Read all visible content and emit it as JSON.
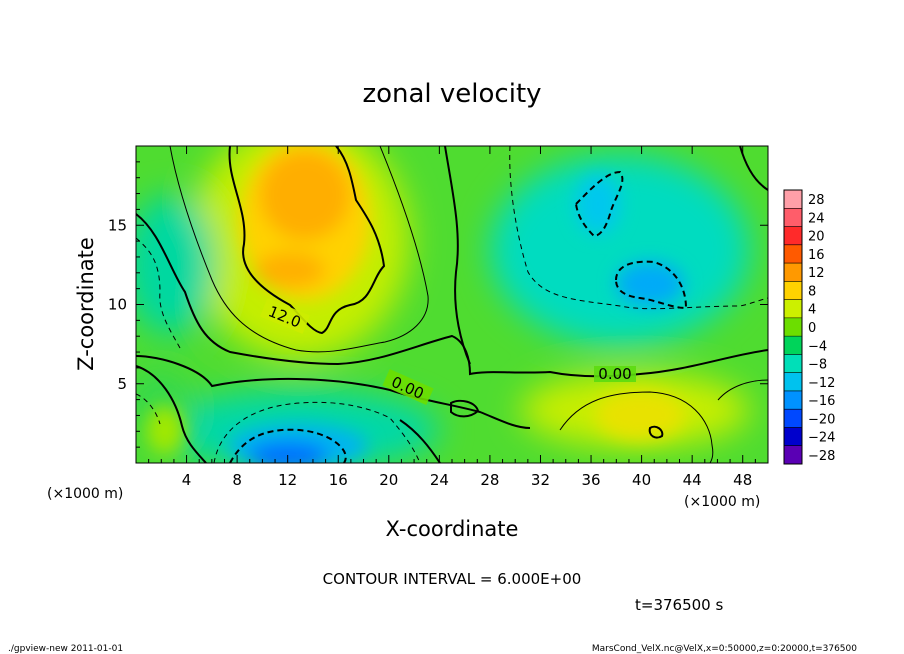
{
  "chart_data": {
    "type": "heatmap",
    "title": "zonal velocity",
    "xlabel": "X-coordinate",
    "ylabel": "Z-coordinate",
    "x_unit": "(×1000 m)",
    "y_unit": "(×1000 m)",
    "xlim": [
      0,
      50
    ],
    "ylim": [
      0,
      20
    ],
    "x_ticks": [
      4,
      8,
      12,
      16,
      20,
      24,
      28,
      32,
      36,
      40,
      44,
      48
    ],
    "y_ticks": [
      5,
      10,
      15
    ],
    "colorbar": {
      "labels": [
        "28",
        "24",
        "20",
        "16",
        "12",
        "8",
        "4",
        "0",
        "−4",
        "−8",
        "−12",
        "−16",
        "−20",
        "−24",
        "−28"
      ],
      "colors": [
        "#ff9fa8",
        "#ff5d6a",
        "#ff2a2a",
        "#ff5a00",
        "#ff9900",
        "#ffd200",
        "#ccf000",
        "#6cde00",
        "#00d45a",
        "#00dfb8",
        "#00c2ee",
        "#0092ff",
        "#0048ff",
        "#0000cc",
        "#5a00b4"
      ]
    },
    "contour_labels": [
      "12.0",
      "0.00",
      "0.00"
    ],
    "contour_interval": "CONTOUR INTERVAL = 6.000E+00",
    "time_label": "t=376500 s"
  },
  "footer": {
    "left": "./gpview-new   2011-01-01",
    "right": "MarsCond_VelX.nc@VelX,x=0:50000,z=0:20000,t=376500"
  }
}
